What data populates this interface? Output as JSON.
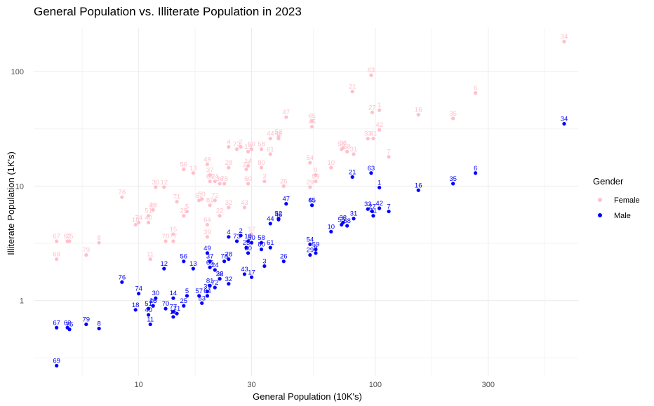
{
  "chart_data": {
    "type": "scatter",
    "title": "General Population vs. Illiterate Population in 2023",
    "xlabel": "General Population (10K's)",
    "ylabel": "Illiterate Population (1K's)",
    "x_scale": "log10",
    "y_scale": "log10",
    "xlim": [
      3.6,
      720
    ],
    "ylim": [
      0.22,
      240
    ],
    "x_ticks": [
      10,
      30,
      100,
      300
    ],
    "x_tick_labels": [
      "10",
      "30",
      "100",
      "300"
    ],
    "y_ticks": [
      1,
      10,
      100
    ],
    "y_tick_labels": [
      "1",
      "10",
      "100"
    ],
    "grid": true,
    "legend": {
      "title": "Gender",
      "position": "right"
    },
    "series": [
      {
        "name": "Female",
        "color": "#ffc0cb",
        "points": [
          {
            "id": "1",
            "x": 104,
            "y": 46
          },
          {
            "id": "2",
            "x": 27,
            "y": 22
          },
          {
            "id": "3",
            "x": 34,
            "y": 11
          },
          {
            "id": "4",
            "x": 24,
            "y": 22
          },
          {
            "id": "5",
            "x": 16,
            "y": 6
          },
          {
            "id": "6",
            "x": 265,
            "y": 65
          },
          {
            "id": "7",
            "x": 114,
            "y": 18
          },
          {
            "id": "8",
            "x": 6.8,
            "y": 3.2
          },
          {
            "id": "9",
            "x": 56,
            "y": 12.5
          },
          {
            "id": "10",
            "x": 65,
            "y": 14.5
          },
          {
            "id": "11",
            "x": 11.2,
            "y": 2.3
          },
          {
            "id": "12",
            "x": 12.8,
            "y": 9.8
          },
          {
            "id": "13",
            "x": 17,
            "y": 13
          },
          {
            "id": "14",
            "x": 29,
            "y": 15
          },
          {
            "id": "15",
            "x": 14,
            "y": 3.8
          },
          {
            "id": "16",
            "x": 152,
            "y": 42
          },
          {
            "id": "17",
            "x": 30,
            "y": 3.8
          },
          {
            "id": "18",
            "x": 9.7,
            "y": 4.6
          },
          {
            "id": "19",
            "x": 29,
            "y": 20
          },
          {
            "id": "20",
            "x": 11.5,
            "y": 6.2
          },
          {
            "id": "21",
            "x": 80,
            "y": 67
          },
          {
            "id": "22",
            "x": 22,
            "y": 5.5
          },
          {
            "id": "23",
            "x": 28.5,
            "y": 14
          },
          {
            "id": "24",
            "x": 21,
            "y": 11
          },
          {
            "id": "25",
            "x": 15.5,
            "y": 5.5
          },
          {
            "id": "26",
            "x": 41,
            "y": 10
          },
          {
            "id": "27",
            "x": 97,
            "y": 44
          },
          {
            "id": "28",
            "x": 24,
            "y": 14.5
          },
          {
            "id": "29",
            "x": 53,
            "y": 9.8
          },
          {
            "id": "30",
            "x": 11.8,
            "y": 9.8
          },
          {
            "id": "31",
            "x": 81,
            "y": 19
          },
          {
            "id": "32",
            "x": 24,
            "y": 6.5
          },
          {
            "id": "33",
            "x": 93,
            "y": 26
          },
          {
            "id": "34",
            "x": 628,
            "y": 183
          },
          {
            "id": "35",
            "x": 213,
            "y": 39
          },
          {
            "id": "36",
            "x": 22,
            "y": 10.5
          },
          {
            "id": "37",
            "x": 20,
            "y": 12.5
          },
          {
            "id": "38",
            "x": 73,
            "y": 21.5
          },
          {
            "id": "39",
            "x": 19.5,
            "y": 3.6
          },
          {
            "id": "40",
            "x": 11,
            "y": 4.8
          },
          {
            "id": "41",
            "x": 98,
            "y": 26
          },
          {
            "id": "42",
            "x": 104,
            "y": 31
          },
          {
            "id": "43",
            "x": 28,
            "y": 6.5
          },
          {
            "id": "44",
            "x": 36,
            "y": 26
          },
          {
            "id": "45",
            "x": 54,
            "y": 33
          },
          {
            "id": "46",
            "x": 39,
            "y": 26
          },
          {
            "id": "47",
            "x": 42,
            "y": 40
          },
          {
            "id": "48",
            "x": 11.5,
            "y": 6.2
          },
          {
            "id": "49",
            "x": 19.5,
            "y": 15.5
          },
          {
            "id": "50",
            "x": 30,
            "y": 21
          },
          {
            "id": "51",
            "x": 11,
            "y": 5.5
          },
          {
            "id": "52",
            "x": 39,
            "y": 27
          },
          {
            "id": "53",
            "x": 18.5,
            "y": 7.7
          },
          {
            "id": "54",
            "x": 53,
            "y": 16
          },
          {
            "id": "55",
            "x": 72,
            "y": 21
          },
          {
            "id": "56",
            "x": 15.5,
            "y": 14
          },
          {
            "id": "57",
            "x": 18,
            "y": 7.5
          },
          {
            "id": "58",
            "x": 33,
            "y": 21
          },
          {
            "id": "59",
            "x": 56,
            "y": 11
          },
          {
            "id": "60",
            "x": 29,
            "y": 10.5
          },
          {
            "id": "61",
            "x": 36,
            "y": 19
          },
          {
            "id": "62",
            "x": 5,
            "y": 3.3
          },
          {
            "id": "63",
            "x": 96,
            "y": 93
          },
          {
            "id": "64",
            "x": 19.5,
            "y": 4.6
          },
          {
            "id": "65",
            "x": 54,
            "y": 37
          },
          {
            "id": "66",
            "x": 20,
            "y": 11
          },
          {
            "id": "67",
            "x": 4.5,
            "y": 3.3
          },
          {
            "id": "68",
            "x": 76,
            "y": 20
          },
          {
            "id": "69",
            "x": 4.5,
            "y": 2.3
          },
          {
            "id": "70",
            "x": 13,
            "y": 3.3
          },
          {
            "id": "71",
            "x": 14.5,
            "y": 7.3
          },
          {
            "id": "72",
            "x": 21,
            "y": 7.5
          },
          {
            "id": "73",
            "x": 26,
            "y": 21
          },
          {
            "id": "74",
            "x": 10,
            "y": 4.8
          },
          {
            "id": "75",
            "x": 5.1,
            "y": 3.3
          },
          {
            "id": "76",
            "x": 8.5,
            "y": 8
          },
          {
            "id": "77",
            "x": 14,
            "y": 3.3
          },
          {
            "id": "78",
            "x": 23,
            "y": 10.5
          },
          {
            "id": "79",
            "x": 6,
            "y": 2.5
          },
          {
            "id": "80",
            "x": 33,
            "y": 14.5
          },
          {
            "id": "81",
            "x": 20,
            "y": 6.8
          }
        ]
      },
      {
        "name": "Male",
        "color": "#0000ff",
        "points": [
          {
            "id": "1",
            "x": 104,
            "y": 9.7
          },
          {
            "id": "2",
            "x": 27,
            "y": 3.7
          },
          {
            "id": "3",
            "x": 34,
            "y": 2
          },
          {
            "id": "4",
            "x": 24,
            "y": 3.6
          },
          {
            "id": "5",
            "x": 16,
            "y": 1.1
          },
          {
            "id": "6",
            "x": 265,
            "y": 13
          },
          {
            "id": "7",
            "x": 114,
            "y": 6
          },
          {
            "id": "8",
            "x": 6.8,
            "y": 0.57
          },
          {
            "id": "9",
            "x": 56,
            "y": 2.6
          },
          {
            "id": "10",
            "x": 65,
            "y": 4
          },
          {
            "id": "11",
            "x": 11.2,
            "y": 0.62
          },
          {
            "id": "12",
            "x": 12.8,
            "y": 1.9
          },
          {
            "id": "13",
            "x": 17,
            "y": 1.9
          },
          {
            "id": "14",
            "x": 14,
            "y": 1.05
          },
          {
            "id": "15",
            "x": 14,
            "y": 0.72
          },
          {
            "id": "16",
            "x": 152,
            "y": 9.2
          },
          {
            "id": "17",
            "x": 30,
            "y": 1.6
          },
          {
            "id": "18",
            "x": 9.7,
            "y": 0.83
          },
          {
            "id": "19",
            "x": 29,
            "y": 3.3
          },
          {
            "id": "20",
            "x": 11.5,
            "y": 0.9
          },
          {
            "id": "21",
            "x": 80,
            "y": 12
          },
          {
            "id": "22",
            "x": 22,
            "y": 1.55
          },
          {
            "id": "23",
            "x": 28.5,
            "y": 2.9
          },
          {
            "id": "24",
            "x": 21,
            "y": 1.85
          },
          {
            "id": "25",
            "x": 15.5,
            "y": 0.9
          },
          {
            "id": "26",
            "x": 41,
            "y": 2.2
          },
          {
            "id": "27",
            "x": 97,
            "y": 6
          },
          {
            "id": "28",
            "x": 24,
            "y": 2.3
          },
          {
            "id": "29",
            "x": 53,
            "y": 2.5
          },
          {
            "id": "30",
            "x": 11.8,
            "y": 1.05
          },
          {
            "id": "31",
            "x": 81,
            "y": 5.2
          },
          {
            "id": "32",
            "x": 24,
            "y": 1.4
          },
          {
            "id": "33",
            "x": 93,
            "y": 6.3
          },
          {
            "id": "34",
            "x": 628,
            "y": 35
          },
          {
            "id": "35",
            "x": 213,
            "y": 10.5
          },
          {
            "id": "36",
            "x": 22,
            "y": 1.55
          },
          {
            "id": "37",
            "x": 20,
            "y": 2.2
          },
          {
            "id": "38",
            "x": 73,
            "y": 4.8
          },
          {
            "id": "39",
            "x": 19.5,
            "y": 1.2
          },
          {
            "id": "40",
            "x": 11,
            "y": 0.75
          },
          {
            "id": "41",
            "x": 98,
            "y": 5.5
          },
          {
            "id": "42",
            "x": 104,
            "y": 6.4
          },
          {
            "id": "43",
            "x": 28,
            "y": 1.7
          },
          {
            "id": "44",
            "x": 36,
            "y": 4.7
          },
          {
            "id": "45",
            "x": 54,
            "y": 6.8
          },
          {
            "id": "46",
            "x": 39,
            "y": 5.1
          },
          {
            "id": "47",
            "x": 42,
            "y": 7
          },
          {
            "id": "48",
            "x": 11.5,
            "y": 0.9
          },
          {
            "id": "49",
            "x": 19.5,
            "y": 2.6
          },
          {
            "id": "50",
            "x": 30,
            "y": 3.2
          },
          {
            "id": "51",
            "x": 11,
            "y": 0.85
          },
          {
            "id": "52",
            "x": 39,
            "y": 5.2
          },
          {
            "id": "53",
            "x": 18.5,
            "y": 0.95
          },
          {
            "id": "54",
            "x": 53,
            "y": 3.1
          },
          {
            "id": "55",
            "x": 72,
            "y": 4.6
          },
          {
            "id": "56",
            "x": 15.5,
            "y": 2.2
          },
          {
            "id": "57",
            "x": 18,
            "y": 1.1
          },
          {
            "id": "58",
            "x": 33,
            "y": 3.2
          },
          {
            "id": "59",
            "x": 56,
            "y": 2.8
          },
          {
            "id": "60",
            "x": 29,
            "y": 2.6
          },
          {
            "id": "61",
            "x": 36,
            "y": 2.9
          },
          {
            "id": "62",
            "x": 5,
            "y": 0.58
          },
          {
            "id": "63",
            "x": 96,
            "y": 13
          },
          {
            "id": "64",
            "x": 19.5,
            "y": 1.1
          },
          {
            "id": "65",
            "x": 54,
            "y": 6.8
          },
          {
            "id": "66",
            "x": 20,
            "y": 1.95
          },
          {
            "id": "67",
            "x": 4.5,
            "y": 0.58
          },
          {
            "id": "68",
            "x": 76,
            "y": 4.5
          },
          {
            "id": "69",
            "x": 4.5,
            "y": 0.27
          },
          {
            "id": "70",
            "x": 13,
            "y": 0.85
          },
          {
            "id": "71",
            "x": 14.5,
            "y": 0.77
          },
          {
            "id": "72",
            "x": 21,
            "y": 1.3
          },
          {
            "id": "73",
            "x": 26,
            "y": 3.3
          },
          {
            "id": "74",
            "x": 10,
            "y": 1.15
          },
          {
            "id": "75",
            "x": 5.1,
            "y": 0.56
          },
          {
            "id": "76",
            "x": 8.5,
            "y": 1.45
          },
          {
            "id": "77",
            "x": 14,
            "y": 0.8
          },
          {
            "id": "78",
            "x": 23,
            "y": 2.2
          },
          {
            "id": "79",
            "x": 6,
            "y": 0.62
          },
          {
            "id": "80",
            "x": 33,
            "y": 2.8
          },
          {
            "id": "81",
            "x": 20,
            "y": 1.35
          }
        ]
      }
    ]
  }
}
